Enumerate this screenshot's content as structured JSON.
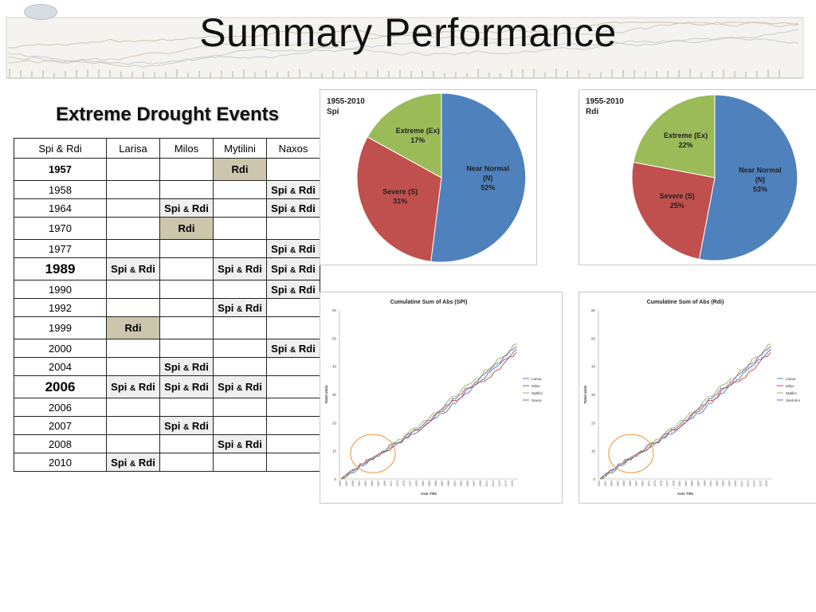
{
  "title": "Summary Performance",
  "subtitle": "Extreme Drought Events",
  "table": {
    "headers": [
      "Spi & Rdi",
      "Larisa",
      "Milos",
      "Mytilini",
      "Naxos"
    ],
    "rows": [
      {
        "year": "1957",
        "cells": [
          "",
          "",
          "Rdi",
          ""
        ]
      },
      {
        "year": "1958",
        "cells": [
          "",
          "",
          "",
          "Spi & Rdi"
        ]
      },
      {
        "year": "1964",
        "cells": [
          "",
          "Spi & Rdi",
          "",
          "Spi & Rdi"
        ]
      },
      {
        "year": "1970",
        "cells": [
          "",
          "Rdi",
          "",
          ""
        ]
      },
      {
        "year": "1977",
        "cells": [
          "",
          "",
          "",
          "Spi & Rdi"
        ]
      },
      {
        "year": "1989",
        "cells": [
          "Spi & Rdi",
          "",
          "Spi & Rdi",
          "Spi & Rdi"
        ]
      },
      {
        "year": "1990",
        "cells": [
          "",
          "",
          "",
          "Spi & Rdi"
        ]
      },
      {
        "year": "1992",
        "cells": [
          "",
          "",
          "Spi & Rdi",
          ""
        ]
      },
      {
        "year": "1999",
        "cells": [
          "Rdi",
          "",
          "",
          ""
        ]
      },
      {
        "year": "2000",
        "cells": [
          "",
          "",
          "",
          "Spi & Rdi"
        ]
      },
      {
        "year": "2004",
        "cells": [
          "",
          "Spi & Rdi",
          "",
          ""
        ]
      },
      {
        "year": "2006",
        "cells": [
          "Spi & Rdi",
          "Spi & Rdi",
          "Spi & Rdi",
          ""
        ]
      },
      {
        "year": "2006",
        "cells": [
          "",
          "",
          "",
          ""
        ]
      },
      {
        "year": "2007",
        "cells": [
          "",
          "Spi & Rdi",
          "",
          ""
        ]
      },
      {
        "year": "2008",
        "cells": [
          "",
          "",
          "Spi & Rdi",
          ""
        ]
      },
      {
        "year": "2010",
        "cells": [
          "Spi & Rdi",
          "",
          "",
          ""
        ]
      }
    ]
  },
  "chart_data": [
    {
      "type": "pie",
      "title": "1955-2010",
      "subtitle": "Spi",
      "slices": [
        {
          "label": "Near Normal",
          "code": "(N)",
          "percent": "52%",
          "value": 52,
          "color": "#4f81bd"
        },
        {
          "label": "Severe (S)",
          "code": "",
          "percent": "31%",
          "value": 31,
          "color": "#c0504d"
        },
        {
          "label": "Extreme (Ex)",
          "code": "",
          "percent": "17%",
          "value": 17,
          "color": "#9bbb59"
        }
      ]
    },
    {
      "type": "pie",
      "title": "1955-2010",
      "subtitle": "Rdi",
      "slices": [
        {
          "label": "Near Normal",
          "code": "(N)",
          "percent": "53%",
          "value": 53,
          "color": "#4f81bd"
        },
        {
          "label": "Severe (S)",
          "code": "",
          "percent": "25%",
          "value": 25,
          "color": "#c0504d"
        },
        {
          "label": "Extreme (Ex)",
          "code": "",
          "percent": "22%",
          "value": 22,
          "color": "#9bbb59"
        }
      ]
    },
    {
      "type": "line",
      "title": "Cumulatine Sum of Abs (SPI)",
      "xlabel": "Axis Title",
      "ylabel": "Total Units",
      "ylim": [
        0,
        60
      ],
      "yticks": [
        0,
        10,
        20,
        30,
        40,
        50,
        60
      ],
      "x_start": 1955,
      "x_end": 2010,
      "series": [
        {
          "name": "Larisa",
          "color": "#4f81bd",
          "values": [
            0,
            5.5,
            11,
            16.5,
            23,
            30,
            38,
            46
          ]
        },
        {
          "name": "Milos",
          "color": "#c0504d",
          "values": [
            0,
            6,
            11,
            17,
            24,
            31,
            37,
            45
          ]
        },
        {
          "name": "Mytilini",
          "color": "#9bbb59",
          "values": [
            0,
            6,
            12,
            18,
            25,
            33,
            40,
            48
          ]
        },
        {
          "name": "Naxos",
          "color": "#8064a2",
          "values": [
            0,
            6,
            11.5,
            17.5,
            24,
            32,
            39,
            47
          ]
        }
      ],
      "annotation": "circle"
    },
    {
      "type": "line",
      "title": "Cumulatine Sum of Abs (Rdi)",
      "xlabel": "Axis Title",
      "ylabel": "Total Units",
      "ylim": [
        0,
        60
      ],
      "yticks": [
        0,
        10,
        20,
        30,
        40,
        50,
        60
      ],
      "x_start": 1955,
      "x_end": 2010,
      "series": [
        {
          "name": "Larisa",
          "color": "#4f81bd",
          "values": [
            0,
            5.5,
            11,
            16.5,
            23,
            30,
            38,
            46
          ]
        },
        {
          "name": "Milos",
          "color": "#c0504d",
          "values": [
            0,
            6,
            11,
            17,
            24,
            31,
            37,
            45
          ]
        },
        {
          "name": "Mytilini",
          "color": "#9bbb59",
          "values": [
            0,
            6,
            12,
            18,
            25,
            33,
            40,
            48
          ]
        },
        {
          "name": "Santorini",
          "color": "#8064a2",
          "values": [
            0,
            6,
            11.5,
            17.5,
            24,
            32,
            39,
            47
          ]
        }
      ],
      "annotation": "circle"
    }
  ]
}
